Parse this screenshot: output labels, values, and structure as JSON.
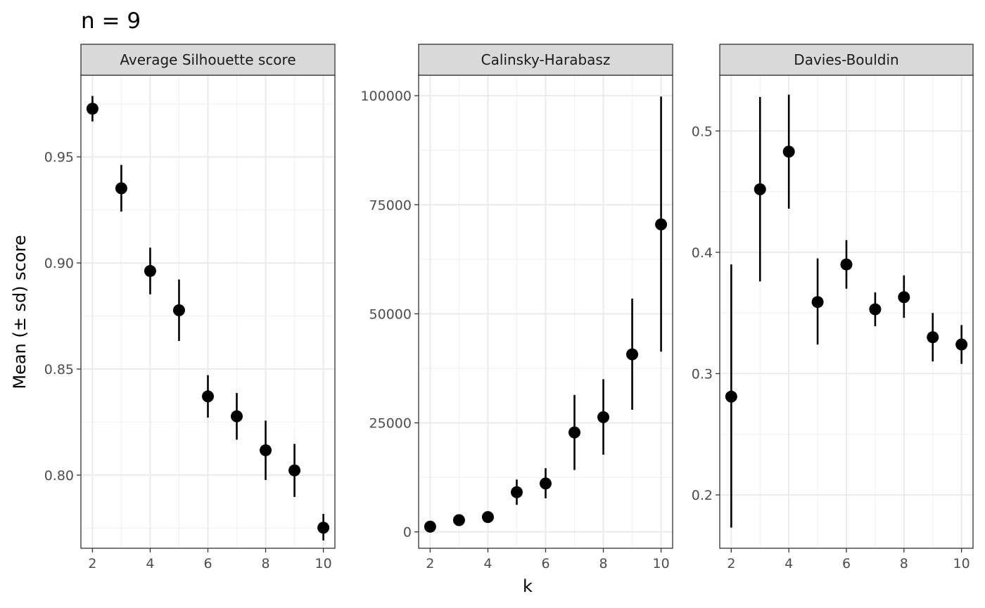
{
  "chart_data": {
    "type": "scatter",
    "title": "n = 9",
    "xlabel": "k",
    "ylabel": "Mean (± sd) score",
    "x_ticks": [
      2,
      4,
      6,
      8,
      10
    ],
    "grid": true,
    "colors": {
      "points": "#000000",
      "panel_border": "#333333",
      "strip_fill": "#d9d9d9",
      "grid_major": "#ebebeb",
      "grid_minor": "#f3f3f3"
    },
    "panels": [
      {
        "strip_label": "Average Silhouette score",
        "ylim": [
          0.7655,
          0.9885
        ],
        "y_ticks": [
          0.8,
          0.85,
          0.9,
          0.95
        ],
        "y_tick_labels": [
          "0.80",
          "0.85",
          "0.90",
          "0.95"
        ],
        "x": [
          2,
          3,
          4,
          5,
          6,
          7,
          8,
          9,
          10
        ],
        "mean": [
          0.9727,
          0.9352,
          0.8962,
          0.8777,
          0.8371,
          0.8277,
          0.8117,
          0.8022,
          0.7752
        ],
        "lower": [
          0.9667,
          0.9242,
          0.8852,
          0.8632,
          0.8271,
          0.8167,
          0.7977,
          0.7897,
          0.7692
        ],
        "upper": [
          0.9787,
          0.9462,
          0.9072,
          0.8922,
          0.8471,
          0.8387,
          0.8257,
          0.8147,
          0.7817
        ]
      },
      {
        "strip_label": "Calinsky-Harabasz",
        "ylim": [
          -3750,
          104700
        ],
        "y_ticks": [
          0,
          25000,
          50000,
          75000,
          100000
        ],
        "y_tick_labels": [
          "0",
          "25000",
          "50000",
          "75000",
          "100000"
        ],
        "x": [
          2,
          3,
          4,
          5,
          6,
          7,
          8,
          9,
          10
        ],
        "mean": [
          1200,
          2700,
          3400,
          9100,
          11100,
          22800,
          26300,
          40700,
          70500
        ],
        "lower": [
          1000,
          2400,
          3100,
          6200,
          7700,
          14200,
          17700,
          28000,
          41300
        ],
        "upper": [
          1500,
          3000,
          3800,
          12000,
          14600,
          31400,
          35000,
          53500,
          99800
        ]
      },
      {
        "strip_label": "Davies-Bouldin",
        "ylim": [
          0.156,
          0.546
        ],
        "y_ticks": [
          0.2,
          0.3,
          0.4,
          0.5
        ],
        "y_tick_labels": [
          "0.2",
          "0.3",
          "0.4",
          "0.5"
        ],
        "x": [
          2,
          3,
          4,
          5,
          6,
          7,
          8,
          9,
          10
        ],
        "mean": [
          0.281,
          0.452,
          0.483,
          0.359,
          0.39,
          0.353,
          0.363,
          0.33,
          0.324
        ],
        "lower": [
          0.173,
          0.376,
          0.436,
          0.324,
          0.37,
          0.339,
          0.346,
          0.31,
          0.308
        ],
        "upper": [
          0.39,
          0.528,
          0.53,
          0.395,
          0.41,
          0.367,
          0.381,
          0.35,
          0.34
        ]
      }
    ]
  }
}
